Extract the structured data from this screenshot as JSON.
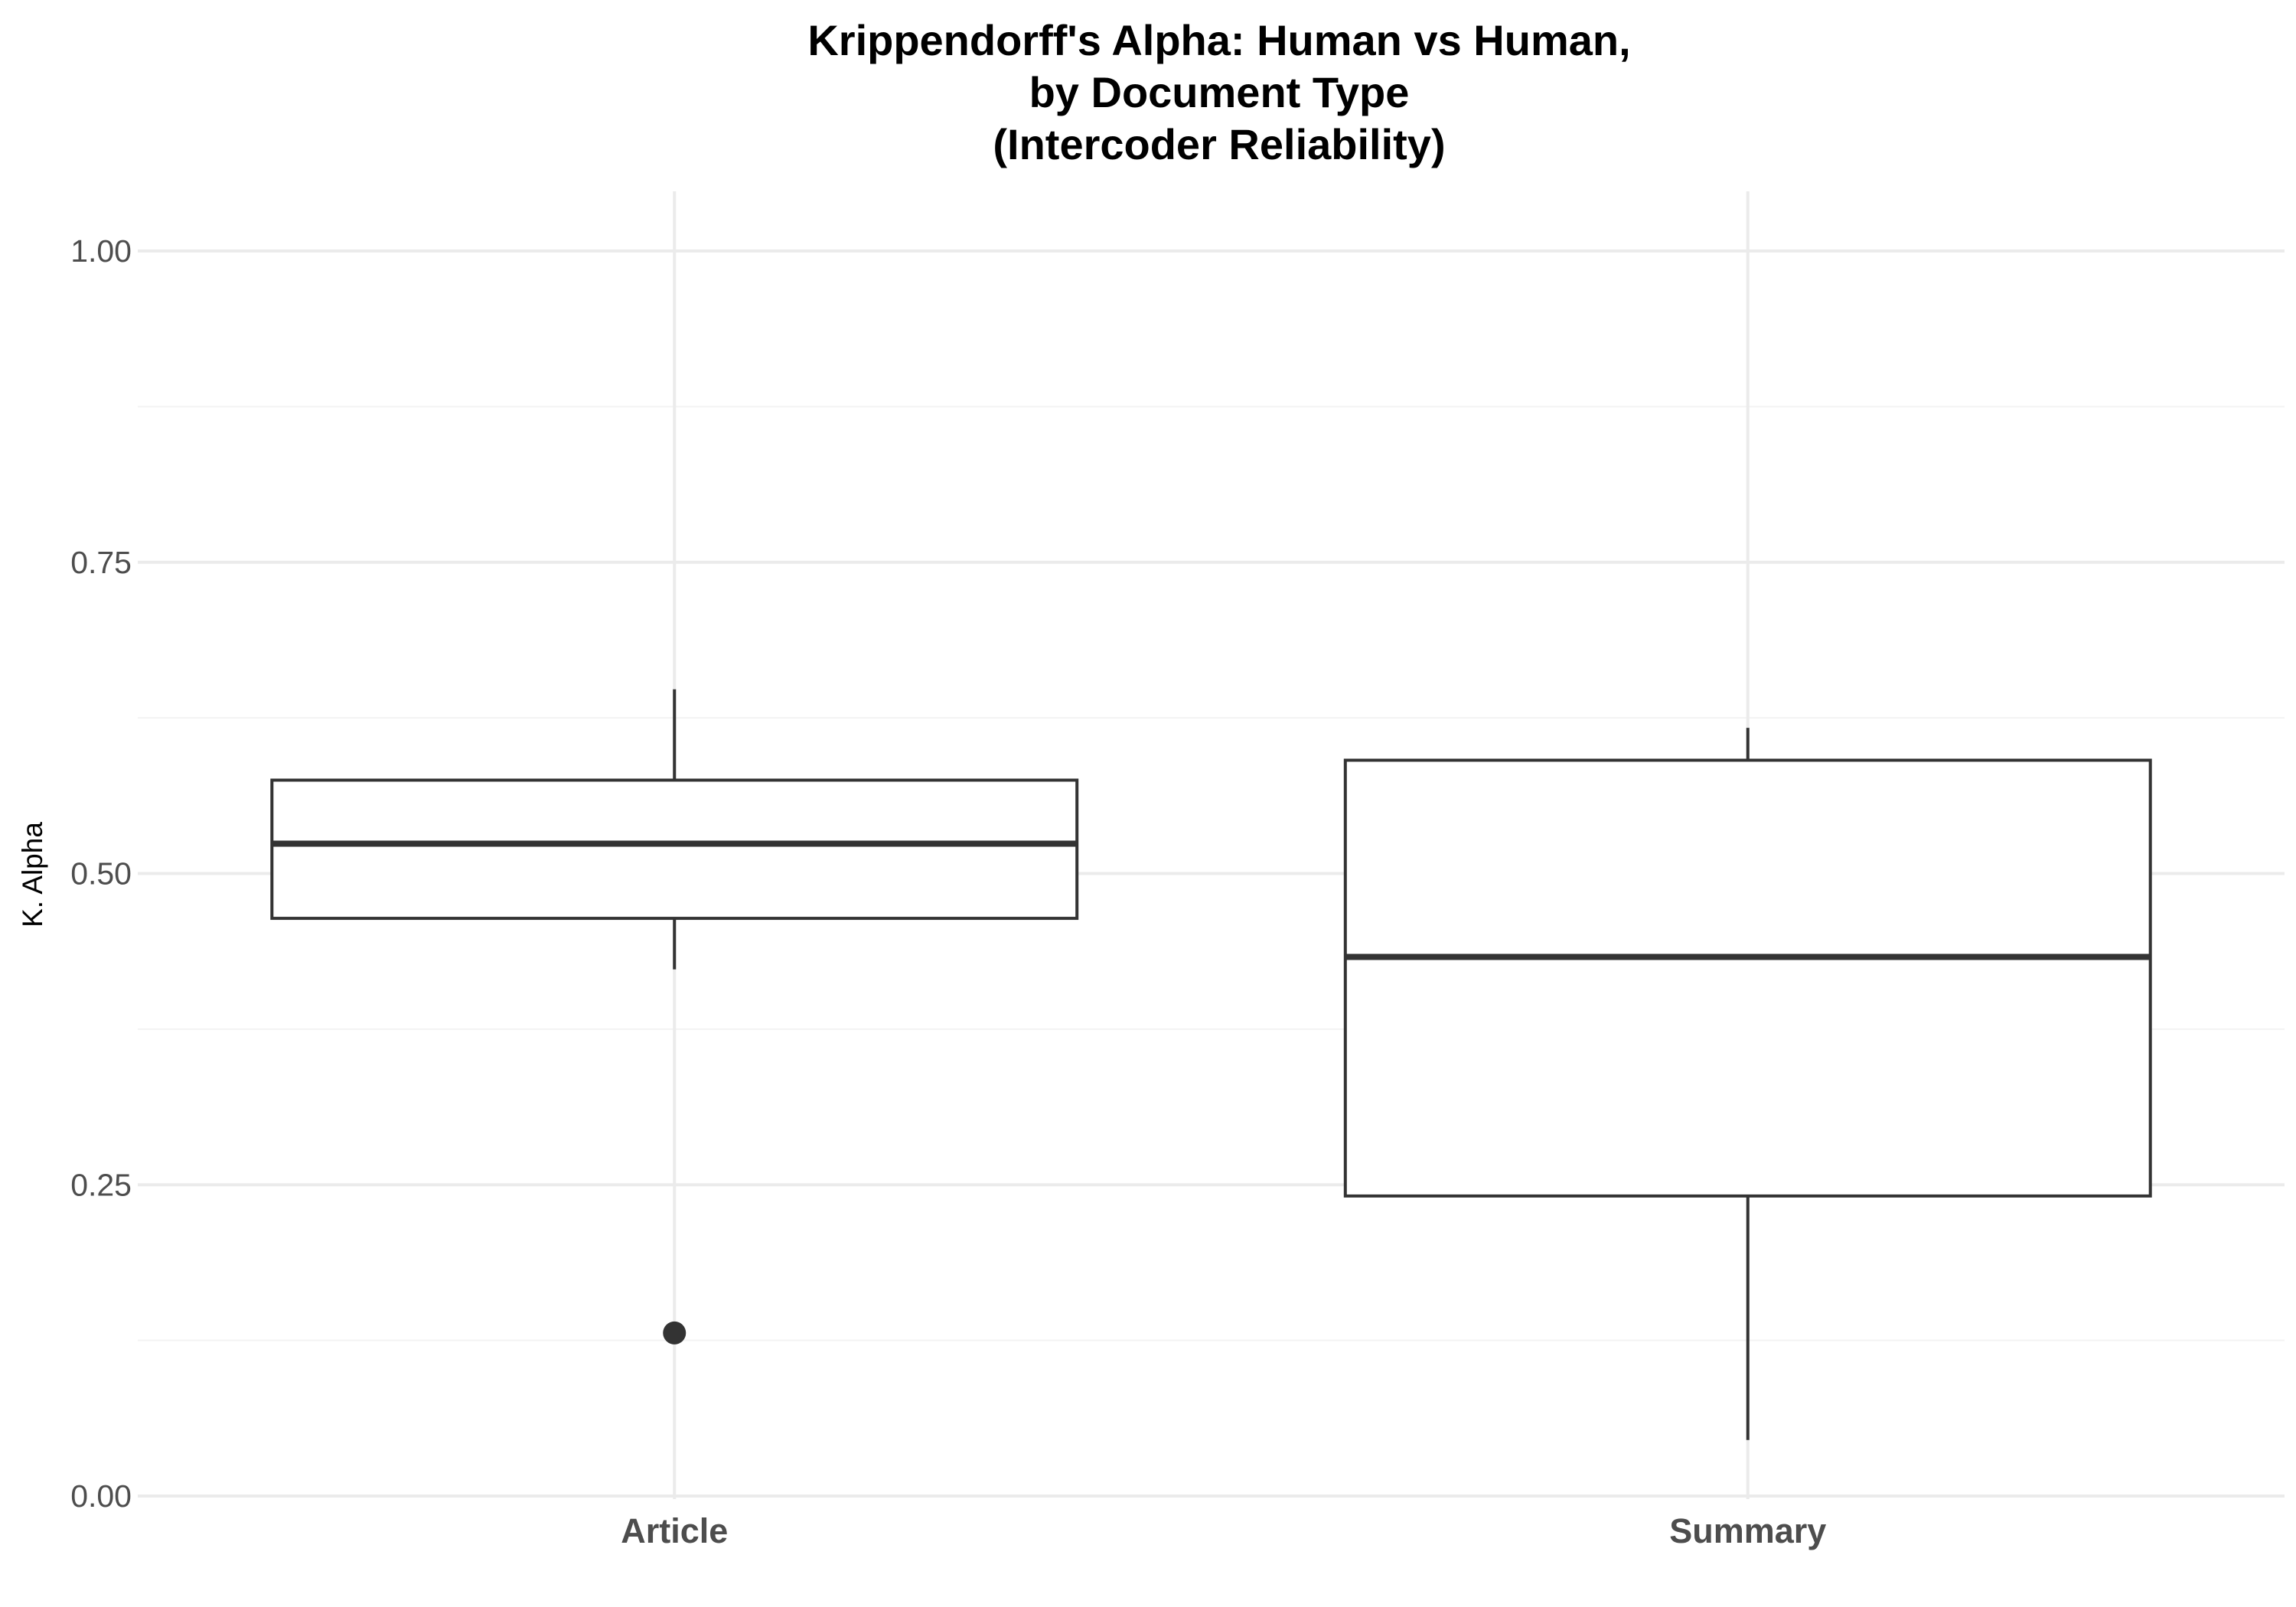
{
  "chart_data": {
    "type": "boxplot",
    "title": [
      "Krippendorff's Alpha: Human vs Human,",
      "by Document Type",
      "(Intercoder Reliability)"
    ],
    "xlabel": "",
    "ylabel": "K. Alpha",
    "ylim": [
      0,
      1.05
    ],
    "yticks": [
      "0.00",
      "0.25",
      "0.50",
      "0.75",
      "1.00"
    ],
    "ytick_values": [
      0,
      0.25,
      0.5,
      0.75,
      1.0
    ],
    "grid": true,
    "categories": [
      "Article",
      "Summary"
    ],
    "boxes": [
      {
        "category": "Article",
        "whisker_low": 0.423,
        "q1": 0.464,
        "median": 0.524,
        "q3": 0.575,
        "whisker_high": 0.648,
        "outliers": [
          0.131
        ]
      },
      {
        "category": "Summary",
        "whisker_low": 0.045,
        "q1": 0.241,
        "median": 0.433,
        "q3": 0.591,
        "whisker_high": 0.617,
        "outliers": []
      }
    ],
    "colors": {
      "box_stroke": "#333333",
      "box_fill": "#ffffff",
      "grid_major": "#ebebeb",
      "grid_minor": "#f3f3f3"
    }
  }
}
